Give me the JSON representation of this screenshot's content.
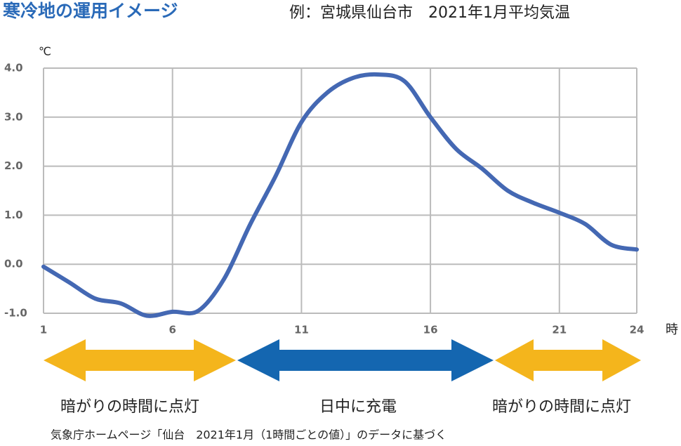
{
  "chart_data": {
    "type": "line",
    "title": "寒冷地の運用イメージ",
    "subtitle": "例：宮城県仙台市　2021年1月平均気温",
    "y_label": "℃",
    "x_label": "時",
    "x": [
      1,
      2,
      3,
      4,
      5,
      6,
      7,
      8,
      9,
      10,
      11,
      12,
      13,
      14,
      15,
      16,
      17,
      18,
      19,
      20,
      21,
      22,
      23,
      24
    ],
    "series": [
      {
        "name": "平均気温",
        "color": "#4468b3",
        "values": [
          -0.05,
          -0.37,
          -0.7,
          -0.8,
          -1.05,
          -0.97,
          -0.95,
          -0.3,
          0.8,
          1.8,
          2.9,
          3.5,
          3.8,
          3.87,
          3.73,
          3.0,
          2.35,
          1.95,
          1.5,
          1.25,
          1.05,
          0.82,
          0.4,
          0.3
        ]
      }
    ],
    "xlim": [
      1,
      24
    ],
    "xticks": [
      1,
      6,
      11,
      16,
      21,
      24
    ],
    "ylim": [
      -1,
      4
    ],
    "yticks": [
      {
        "value": -1,
        "label": "-1.0"
      },
      {
        "value": 0,
        "label": "0.0"
      },
      {
        "value": 1,
        "label": "1.0"
      },
      {
        "value": 2,
        "label": "2.0"
      },
      {
        "value": 3,
        "label": "3.0"
      },
      {
        "value": 4,
        "label": "4.0"
      }
    ],
    "grid": true,
    "annotations": [
      "暗がりの時間に点灯",
      "日中に充電",
      "暗がりの時間に点灯"
    ],
    "source": "気象庁ホームページ「仙台　2021年1月（1時間ごとの値）」のデータに基づく"
  }
}
